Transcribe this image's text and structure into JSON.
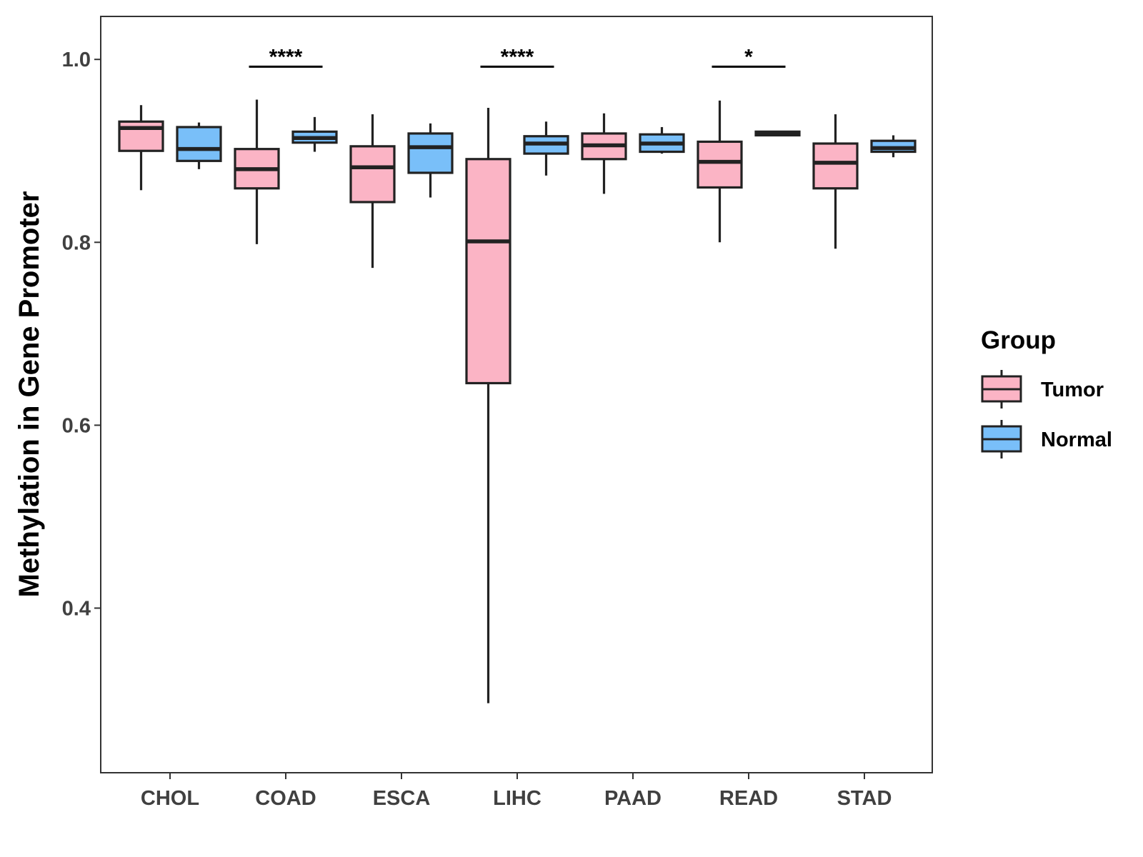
{
  "chart_data": {
    "type": "boxplot",
    "title": "",
    "xlabel": "",
    "ylabel": "Methylation in Gene Promoter",
    "ylim": [
      0.22,
      1.047
    ],
    "yticks": [
      0.4,
      0.6,
      0.8,
      1.0
    ],
    "ytick_labels": [
      "0.4",
      "0.6",
      "0.8",
      "1.0"
    ],
    "categories": [
      "CHOL",
      "COAD",
      "ESCA",
      "LIHC",
      "PAAD",
      "READ",
      "STAD"
    ],
    "legend": {
      "title": "Group",
      "position": "right",
      "entries": [
        {
          "name": "Tumor",
          "color": "#FBB4C5"
        },
        {
          "name": "Normal",
          "color": "#79BFF9"
        }
      ]
    },
    "series": [
      {
        "name": "Tumor",
        "color": "#FBB4C5",
        "boxes": [
          {
            "category": "CHOL",
            "whisker_low": 0.857,
            "q1": 0.9,
            "median": 0.925,
            "q3": 0.932,
            "whisker_high": 0.95
          },
          {
            "category": "COAD",
            "whisker_low": 0.798,
            "q1": 0.859,
            "median": 0.88,
            "q3": 0.902,
            "whisker_high": 0.956
          },
          {
            "category": "ESCA",
            "whisker_low": 0.772,
            "q1": 0.844,
            "median": 0.882,
            "q3": 0.905,
            "whisker_high": 0.94
          },
          {
            "category": "LIHC",
            "whisker_low": 0.296,
            "q1": 0.646,
            "median": 0.801,
            "q3": 0.891,
            "whisker_high": 0.947
          },
          {
            "category": "PAAD",
            "whisker_low": 0.853,
            "q1": 0.891,
            "median": 0.906,
            "q3": 0.919,
            "whisker_high": 0.941
          },
          {
            "category": "READ",
            "whisker_low": 0.8,
            "q1": 0.86,
            "median": 0.888,
            "q3": 0.91,
            "whisker_high": 0.955
          },
          {
            "category": "STAD",
            "whisker_low": 0.793,
            "q1": 0.859,
            "median": 0.887,
            "q3": 0.908,
            "whisker_high": 0.94
          }
        ]
      },
      {
        "name": "Normal",
        "color": "#79BFF9",
        "boxes": [
          {
            "category": "CHOL",
            "whisker_low": 0.88,
            "q1": 0.889,
            "median": 0.902,
            "q3": 0.926,
            "whisker_high": 0.931
          },
          {
            "category": "COAD",
            "whisker_low": 0.899,
            "q1": 0.909,
            "median": 0.914,
            "q3": 0.921,
            "whisker_high": 0.937
          },
          {
            "category": "ESCA",
            "whisker_low": 0.849,
            "q1": 0.876,
            "median": 0.904,
            "q3": 0.919,
            "whisker_high": 0.93
          },
          {
            "category": "LIHC",
            "whisker_low": 0.873,
            "q1": 0.897,
            "median": 0.908,
            "q3": 0.916,
            "whisker_high": 0.932
          },
          {
            "category": "PAAD",
            "whisker_low": 0.897,
            "q1": 0.899,
            "median": 0.908,
            "q3": 0.918,
            "whisker_high": 0.926
          },
          {
            "category": "READ",
            "whisker_low": 0.916,
            "q1": 0.917,
            "median": 0.919,
            "q3": 0.921,
            "whisker_high": 0.922
          },
          {
            "category": "STAD",
            "whisker_low": 0.893,
            "q1": 0.899,
            "median": 0.903,
            "q3": 0.911,
            "whisker_high": 0.917
          }
        ]
      }
    ],
    "annotations": [
      {
        "category": "COAD",
        "label": "****",
        "y": 0.992
      },
      {
        "category": "LIHC",
        "label": "****",
        "y": 0.992
      },
      {
        "category": "READ",
        "label": "*",
        "y": 0.992
      }
    ]
  }
}
